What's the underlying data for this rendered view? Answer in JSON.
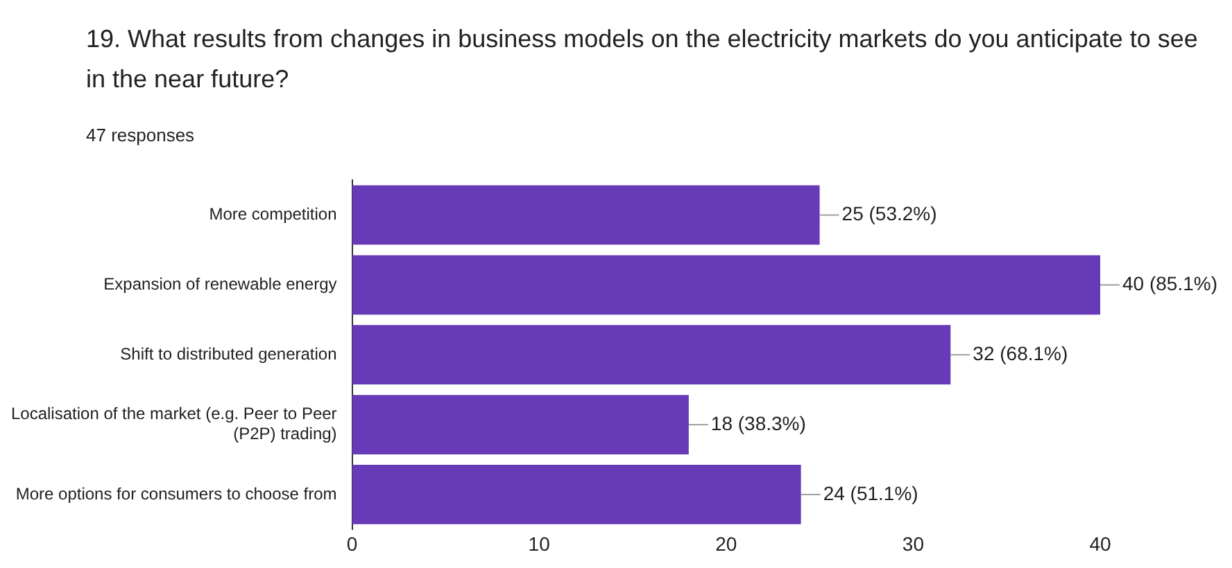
{
  "chart_data": {
    "type": "bar",
    "orientation": "horizontal",
    "title": "19. What results from changes in business models on the electricity markets do you anticipate to see in the near future?",
    "subtitle": "47 responses",
    "categories": [
      "More competition",
      "Expansion of renewable energy",
      "Shift to distributed generation",
      "Localisation of the market (e.g. Peer to Peer (P2P) trading)",
      "More options for consumers to choose from"
    ],
    "values": [
      25,
      40,
      32,
      18,
      24
    ],
    "value_labels": [
      "25 (53.2%)",
      "40 (85.1%)",
      "32 (68.1%)",
      "18 (38.3%)",
      "24 (51.1%)"
    ],
    "color": "#673ab7",
    "xlim": [
      0,
      40
    ],
    "xticks": [
      0,
      10,
      20,
      30,
      40
    ],
    "grid": false,
    "legend": false
  }
}
